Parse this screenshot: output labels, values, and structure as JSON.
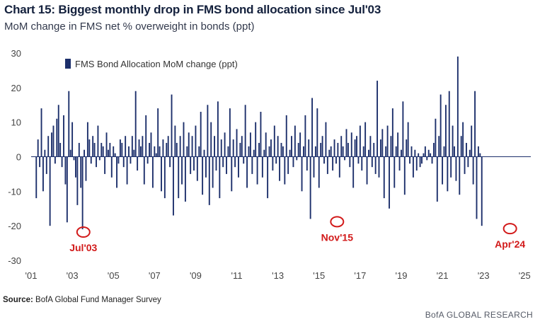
{
  "header": {
    "title": "Chart 15: Biggest monthly drop in FMS bond allocation since Jul'03",
    "subtitle": "MoM change in FMS net % overweight in bonds (ppt)"
  },
  "footer": {
    "source_label": "Source:",
    "source_text": "BofA Global Fund Manager Survey",
    "brand": "BofA GLOBAL RESEARCH"
  },
  "colors": {
    "bar": "#1c2f6b",
    "annotation": "#d21a1a",
    "axis": "#444444"
  },
  "chart_data": {
    "type": "bar",
    "legend": {
      "label": "FMS Bond Allocation MoM change (ppt)",
      "position": "top-left"
    },
    "ylim": [
      -30,
      30
    ],
    "yticks": [
      30,
      20,
      10,
      0,
      -10,
      -20,
      -30
    ],
    "xlim": [
      2001.0,
      2025.3
    ],
    "xticks": [
      {
        "value": 2001,
        "label": "'01"
      },
      {
        "value": 2003,
        "label": "'03"
      },
      {
        "value": 2005,
        "label": "'05"
      },
      {
        "value": 2007,
        "label": "'07"
      },
      {
        "value": 2009,
        "label": "'09"
      },
      {
        "value": 2011,
        "label": "'11"
      },
      {
        "value": 2013,
        "label": "'13"
      },
      {
        "value": 2015,
        "label": "'15"
      },
      {
        "value": 2017,
        "label": "'17"
      },
      {
        "value": 2019,
        "label": "'19"
      },
      {
        "value": 2021,
        "label": "'21"
      },
      {
        "value": 2023,
        "label": "'23"
      },
      {
        "value": 2025,
        "label": "'25"
      }
    ],
    "series": [
      {
        "name": "FMS Bond Allocation MoM change (ppt)",
        "start": "2001-04",
        "values": [
          -12,
          5,
          -3,
          14,
          -10,
          2,
          -5,
          6,
          -20,
          7,
          9,
          -2,
          11,
          15,
          4,
          -3,
          12,
          -8,
          -19,
          19,
          2,
          10,
          -1,
          -6,
          -14,
          4,
          -9,
          -21,
          2,
          -7,
          10,
          5,
          -2,
          6,
          4,
          -3,
          9,
          -1,
          4,
          3,
          -5,
          7,
          2,
          4,
          -6,
          3,
          1,
          -9,
          -2,
          5,
          4,
          -3,
          6,
          -8,
          3,
          -2,
          6,
          2,
          19,
          -4,
          5,
          3,
          6,
          -8,
          12,
          -2,
          4,
          7,
          -9,
          3,
          1,
          14,
          3,
          -10,
          5,
          -12,
          4,
          6,
          -3,
          18,
          -17,
          9,
          4,
          -12,
          6,
          -8,
          10,
          -13,
          3,
          7,
          -5,
          6,
          -4,
          9,
          -7,
          3,
          13,
          -11,
          2,
          -6,
          15,
          -14,
          10,
          -9,
          6,
          -4,
          16,
          -12,
          5,
          -3,
          7,
          -5,
          3,
          14,
          -10,
          5,
          -3,
          8,
          -6,
          4,
          6,
          -2,
          15,
          -9,
          3,
          7,
          -5,
          2,
          10,
          -8,
          4,
          13,
          -6,
          2,
          7,
          -12,
          3,
          5,
          -4,
          9,
          -2,
          6,
          -7,
          4,
          3,
          -8,
          12,
          -5,
          2,
          6,
          -3,
          9,
          -1,
          4,
          7,
          -10,
          3,
          12,
          -4,
          5,
          -18,
          17,
          -6,
          3,
          14,
          -9,
          4,
          6,
          -2,
          10,
          -5,
          2,
          3,
          -4,
          5,
          -2,
          4,
          -6,
          6,
          3,
          -1,
          8,
          4,
          -3,
          7,
          -9,
          5,
          6,
          -2,
          9,
          -4,
          3,
          10,
          -8,
          2,
          6,
          -3,
          4,
          -5,
          22,
          -6,
          5,
          8,
          -12,
          3,
          9,
          -15,
          6,
          14,
          -9,
          3,
          7,
          -4,
          2,
          16,
          -11,
          5,
          10,
          -2,
          3,
          -6,
          2,
          -4,
          1,
          -3,
          -2,
          1,
          3,
          -1,
          2,
          1,
          -2,
          4,
          11,
          -13,
          6,
          18,
          -8,
          3,
          15,
          -10,
          19,
          -6,
          9,
          3,
          -7,
          29,
          -11,
          6,
          10,
          -5,
          4,
          -3,
          2,
          9,
          -8,
          19,
          -18,
          3,
          1,
          -20
        ]
      }
    ],
    "annotations": [
      {
        "label": "Jul'03",
        "x": 2003.54,
        "y": -21
      },
      {
        "label": "Nov'15",
        "x": 2015.88,
        "y": -18
      },
      {
        "label": "Apr'24",
        "x": 2024.29,
        "y": -20
      }
    ]
  }
}
